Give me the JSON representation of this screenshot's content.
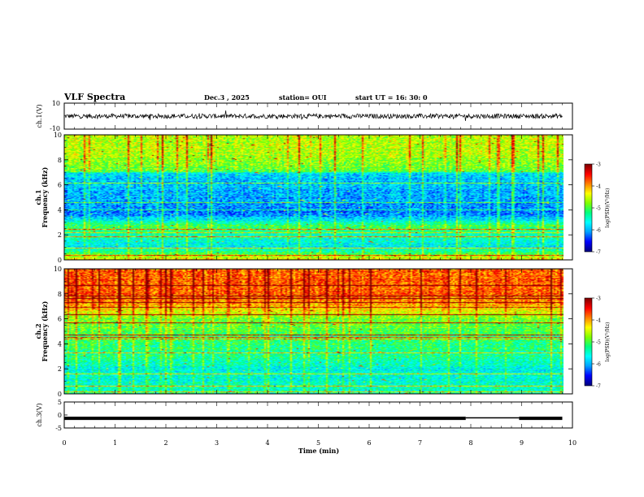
{
  "header": {
    "title": "VLF Spectra",
    "date": "Dec.3 , 2025",
    "station": "station= OUI",
    "start": "start UT = 16: 30: 0"
  },
  "chart_data": [
    {
      "type": "line",
      "name": "ch1-waveform",
      "ylabel": "ch.1(V)",
      "ylim": [
        -10,
        10
      ],
      "yticks": [
        10,
        -10
      ],
      "x": [
        0,
        9.8
      ],
      "level": 0,
      "noise_amplitude": 1.8
    },
    {
      "type": "heatmap",
      "name": "ch1-spectrogram",
      "ylabel_line1": "ch.1",
      "ylabel_line2": "Frequency (kHz)",
      "ylim": [
        0,
        10
      ],
      "yticks": [
        0,
        2,
        4,
        6,
        8,
        10
      ],
      "xlim": [
        0,
        9.8
      ],
      "profile": [
        {
          "f": 0.0,
          "v": -4.3
        },
        {
          "f": 1.0,
          "v": -5.7
        },
        {
          "f": 2.0,
          "v": -5.4
        },
        {
          "f": 2.7,
          "v": -5.0
        },
        {
          "f": 3.6,
          "v": -6.2
        },
        {
          "f": 5.0,
          "v": -6.0
        },
        {
          "f": 6.9,
          "v": -5.8
        },
        {
          "f": 7.1,
          "v": -4.9
        },
        {
          "f": 8.5,
          "v": -4.6
        },
        {
          "f": 10.0,
          "v": -4.5
        }
      ]
    },
    {
      "type": "heatmap",
      "name": "ch2-spectrogram",
      "ylabel_line1": "ch.2",
      "ylabel_line2": "Frequency (kHz)",
      "ylim": [
        0,
        10
      ],
      "yticks": [
        0,
        2,
        4,
        6,
        8,
        10
      ],
      "xlim": [
        0,
        9.8
      ],
      "profile": [
        {
          "f": 0.0,
          "v": -5.4
        },
        {
          "f": 2.0,
          "v": -5.6
        },
        {
          "f": 3.0,
          "v": -5.3
        },
        {
          "f": 4.5,
          "v": -5.1
        },
        {
          "f": 6.0,
          "v": -4.8
        },
        {
          "f": 7.0,
          "v": -4.1
        },
        {
          "f": 8.0,
          "v": -3.7
        },
        {
          "f": 10.0,
          "v": -3.8
        }
      ]
    },
    {
      "type": "line",
      "name": "ch3-waveform",
      "ylabel": "ch.3(V)",
      "ylim": [
        -5,
        5
      ],
      "yticks": [
        5,
        0,
        -5
      ],
      "segments": [
        {
          "x0": 0,
          "x1": 7.9,
          "y": -1.3
        },
        {
          "x0": 7.9,
          "x1": 8.95,
          "y": -1.1
        },
        {
          "x0": 8.95,
          "x1": 9.8,
          "y": -1.3
        }
      ]
    }
  ],
  "colorbar": {
    "label": "log(PSD)(V²/Hz)",
    "ticks": [
      -3,
      -4,
      -5,
      -6,
      -7
    ],
    "range": [
      -7,
      -3
    ]
  },
  "xaxis": {
    "label": "Time (min)",
    "ticks": [
      0,
      1,
      2,
      3,
      4,
      5,
      6,
      7,
      8,
      9,
      10
    ]
  },
  "colors": {
    "frame": "#000000",
    "background": "#ffffff",
    "colormap": [
      "#000080",
      "#0000ff",
      "#00a0ff",
      "#00ffff",
      "#00ff80",
      "#80ff00",
      "#ffff00",
      "#ff8000",
      "#ff0000",
      "#800000"
    ]
  }
}
